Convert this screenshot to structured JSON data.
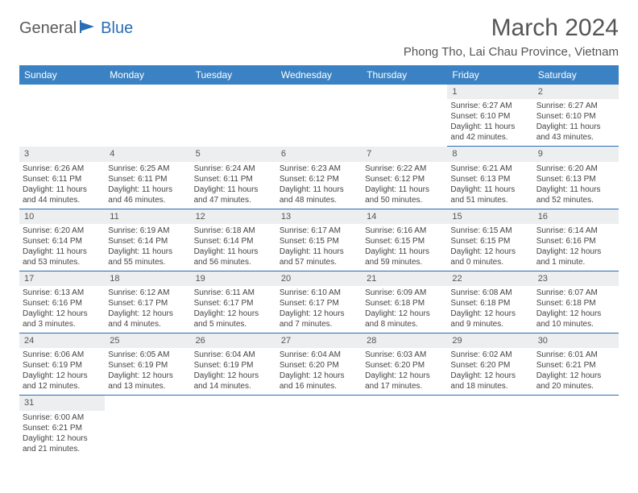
{
  "logo": {
    "part1": "General",
    "part2": "Blue"
  },
  "title": "March 2024",
  "location": "Phong Tho, Lai Chau Province, Vietnam",
  "colors": {
    "header_bg": "#3b82c4",
    "border": "#2a6db5",
    "daynum_bg": "#eceeef",
    "text": "#444",
    "title_text": "#555"
  },
  "weekdays": [
    "Sunday",
    "Monday",
    "Tuesday",
    "Wednesday",
    "Thursday",
    "Friday",
    "Saturday"
  ],
  "weeks": [
    [
      null,
      null,
      null,
      null,
      null,
      {
        "n": "1",
        "sr": "Sunrise: 6:27 AM",
        "ss": "Sunset: 6:10 PM",
        "dl": "Daylight: 11 hours and 42 minutes."
      },
      {
        "n": "2",
        "sr": "Sunrise: 6:27 AM",
        "ss": "Sunset: 6:10 PM",
        "dl": "Daylight: 11 hours and 43 minutes."
      }
    ],
    [
      {
        "n": "3",
        "sr": "Sunrise: 6:26 AM",
        "ss": "Sunset: 6:11 PM",
        "dl": "Daylight: 11 hours and 44 minutes."
      },
      {
        "n": "4",
        "sr": "Sunrise: 6:25 AM",
        "ss": "Sunset: 6:11 PM",
        "dl": "Daylight: 11 hours and 46 minutes."
      },
      {
        "n": "5",
        "sr": "Sunrise: 6:24 AM",
        "ss": "Sunset: 6:11 PM",
        "dl": "Daylight: 11 hours and 47 minutes."
      },
      {
        "n": "6",
        "sr": "Sunrise: 6:23 AM",
        "ss": "Sunset: 6:12 PM",
        "dl": "Daylight: 11 hours and 48 minutes."
      },
      {
        "n": "7",
        "sr": "Sunrise: 6:22 AM",
        "ss": "Sunset: 6:12 PM",
        "dl": "Daylight: 11 hours and 50 minutes."
      },
      {
        "n": "8",
        "sr": "Sunrise: 6:21 AM",
        "ss": "Sunset: 6:13 PM",
        "dl": "Daylight: 11 hours and 51 minutes."
      },
      {
        "n": "9",
        "sr": "Sunrise: 6:20 AM",
        "ss": "Sunset: 6:13 PM",
        "dl": "Daylight: 11 hours and 52 minutes."
      }
    ],
    [
      {
        "n": "10",
        "sr": "Sunrise: 6:20 AM",
        "ss": "Sunset: 6:14 PM",
        "dl": "Daylight: 11 hours and 53 minutes."
      },
      {
        "n": "11",
        "sr": "Sunrise: 6:19 AM",
        "ss": "Sunset: 6:14 PM",
        "dl": "Daylight: 11 hours and 55 minutes."
      },
      {
        "n": "12",
        "sr": "Sunrise: 6:18 AM",
        "ss": "Sunset: 6:14 PM",
        "dl": "Daylight: 11 hours and 56 minutes."
      },
      {
        "n": "13",
        "sr": "Sunrise: 6:17 AM",
        "ss": "Sunset: 6:15 PM",
        "dl": "Daylight: 11 hours and 57 minutes."
      },
      {
        "n": "14",
        "sr": "Sunrise: 6:16 AM",
        "ss": "Sunset: 6:15 PM",
        "dl": "Daylight: 11 hours and 59 minutes."
      },
      {
        "n": "15",
        "sr": "Sunrise: 6:15 AM",
        "ss": "Sunset: 6:15 PM",
        "dl": "Daylight: 12 hours and 0 minutes."
      },
      {
        "n": "16",
        "sr": "Sunrise: 6:14 AM",
        "ss": "Sunset: 6:16 PM",
        "dl": "Daylight: 12 hours and 1 minute."
      }
    ],
    [
      {
        "n": "17",
        "sr": "Sunrise: 6:13 AM",
        "ss": "Sunset: 6:16 PM",
        "dl": "Daylight: 12 hours and 3 minutes."
      },
      {
        "n": "18",
        "sr": "Sunrise: 6:12 AM",
        "ss": "Sunset: 6:17 PM",
        "dl": "Daylight: 12 hours and 4 minutes."
      },
      {
        "n": "19",
        "sr": "Sunrise: 6:11 AM",
        "ss": "Sunset: 6:17 PM",
        "dl": "Daylight: 12 hours and 5 minutes."
      },
      {
        "n": "20",
        "sr": "Sunrise: 6:10 AM",
        "ss": "Sunset: 6:17 PM",
        "dl": "Daylight: 12 hours and 7 minutes."
      },
      {
        "n": "21",
        "sr": "Sunrise: 6:09 AM",
        "ss": "Sunset: 6:18 PM",
        "dl": "Daylight: 12 hours and 8 minutes."
      },
      {
        "n": "22",
        "sr": "Sunrise: 6:08 AM",
        "ss": "Sunset: 6:18 PM",
        "dl": "Daylight: 12 hours and 9 minutes."
      },
      {
        "n": "23",
        "sr": "Sunrise: 6:07 AM",
        "ss": "Sunset: 6:18 PM",
        "dl": "Daylight: 12 hours and 10 minutes."
      }
    ],
    [
      {
        "n": "24",
        "sr": "Sunrise: 6:06 AM",
        "ss": "Sunset: 6:19 PM",
        "dl": "Daylight: 12 hours and 12 minutes."
      },
      {
        "n": "25",
        "sr": "Sunrise: 6:05 AM",
        "ss": "Sunset: 6:19 PM",
        "dl": "Daylight: 12 hours and 13 minutes."
      },
      {
        "n": "26",
        "sr": "Sunrise: 6:04 AM",
        "ss": "Sunset: 6:19 PM",
        "dl": "Daylight: 12 hours and 14 minutes."
      },
      {
        "n": "27",
        "sr": "Sunrise: 6:04 AM",
        "ss": "Sunset: 6:20 PM",
        "dl": "Daylight: 12 hours and 16 minutes."
      },
      {
        "n": "28",
        "sr": "Sunrise: 6:03 AM",
        "ss": "Sunset: 6:20 PM",
        "dl": "Daylight: 12 hours and 17 minutes."
      },
      {
        "n": "29",
        "sr": "Sunrise: 6:02 AM",
        "ss": "Sunset: 6:20 PM",
        "dl": "Daylight: 12 hours and 18 minutes."
      },
      {
        "n": "30",
        "sr": "Sunrise: 6:01 AM",
        "ss": "Sunset: 6:21 PM",
        "dl": "Daylight: 12 hours and 20 minutes."
      }
    ],
    [
      {
        "n": "31",
        "sr": "Sunrise: 6:00 AM",
        "ss": "Sunset: 6:21 PM",
        "dl": "Daylight: 12 hours and 21 minutes."
      },
      null,
      null,
      null,
      null,
      null,
      null
    ]
  ]
}
